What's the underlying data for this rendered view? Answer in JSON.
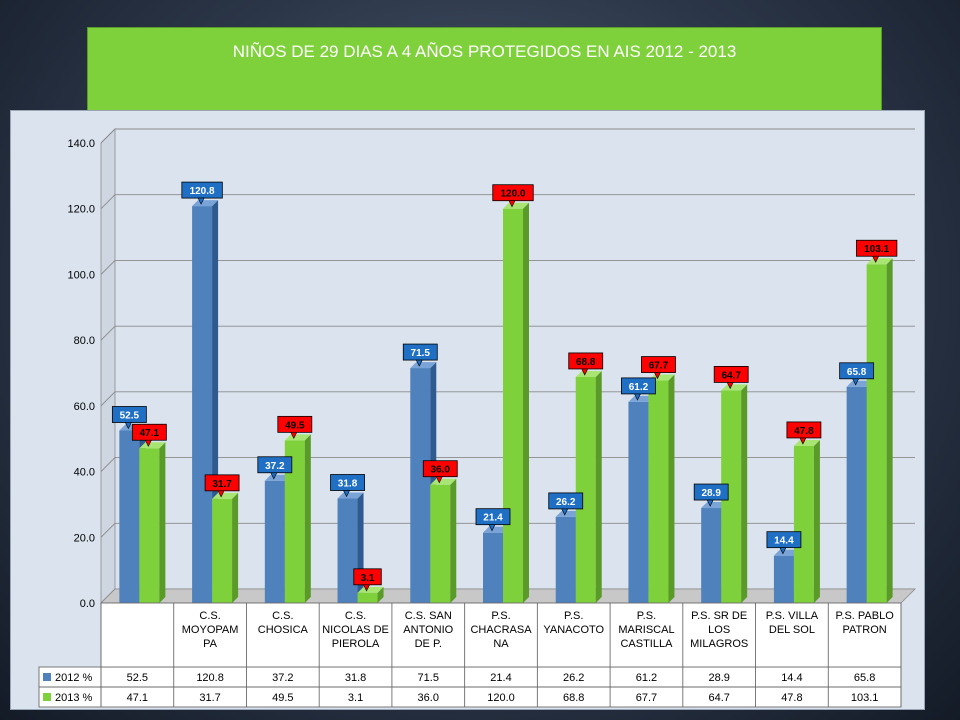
{
  "title": "NIÑOS DE 29 DIAS A 4 AÑOS PROTEGIDOS EN AIS 2012 - 2013",
  "colors": {
    "series_2012": "#4f81bd",
    "series_2012_dark": "#2f5a8f",
    "series_2013": "#7fd13b",
    "series_2013_dark": "#5a9a28",
    "label_2012_bg": "#1f6fc5",
    "label_2013_bg": "#ff0000"
  },
  "chart_data": {
    "type": "bar",
    "title": "NIÑOS DE 29 DIAS A 4 AÑOS PROTEGIDOS EN AIS 2012 - 2013",
    "categories": [
      [
        ""
      ],
      [
        "C.S.",
        "MOYOPAM",
        "PA"
      ],
      [
        "C.S.",
        "CHOSICA"
      ],
      [
        "C.S.",
        "NICOLAS DE",
        "PIEROLA"
      ],
      [
        "C.S. SAN",
        "ANTONIO",
        "DE P."
      ],
      [
        "P.S.",
        "CHACRASA",
        "NA"
      ],
      [
        "P.S.",
        "YANACOTO"
      ],
      [
        "P.S.",
        "MARISCAL",
        "CASTILLA"
      ],
      [
        "P.S. SR DE",
        "LOS",
        "MILAGROS"
      ],
      [
        "P.S. VILLA",
        "DEL SOL"
      ],
      [
        "P.S. PABLO",
        "PATRON"
      ]
    ],
    "series": [
      {
        "name": "2012 %",
        "values": [
          52.5,
          120.8,
          37.2,
          31.8,
          71.5,
          21.4,
          26.2,
          61.2,
          28.9,
          14.4,
          65.8
        ]
      },
      {
        "name": "2013 %",
        "values": [
          47.1,
          31.7,
          49.5,
          3.1,
          36.0,
          120.0,
          68.8,
          67.7,
          64.7,
          47.8,
          103.1
        ]
      }
    ],
    "ylim": [
      0,
      140
    ],
    "yticks": [
      "0.0",
      "20.0",
      "40.0",
      "60.0",
      "80.0",
      "100.0",
      "120.0",
      "140.0"
    ],
    "grid": true,
    "data_table": true
  }
}
